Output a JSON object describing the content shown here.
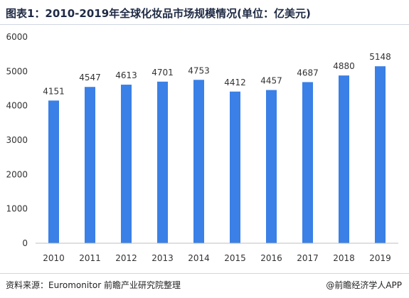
{
  "header": {
    "title": "图表1：2010-2019年全球化妆品市场规模情况(单位：亿美元)"
  },
  "footer": {
    "source": "资料来源：Euromonitor 前瞻产业研究院整理",
    "brand": "@前瞻经济学人APP"
  },
  "colors": {
    "bar": "#3a80e6",
    "axis_text": "#333333",
    "rule": "#cfd6e3"
  },
  "chart_data": {
    "type": "bar",
    "categories": [
      "2010",
      "2011",
      "2012",
      "2013",
      "2014",
      "2015",
      "2016",
      "2017",
      "2018",
      "2019"
    ],
    "values": [
      4151,
      4547,
      4613,
      4701,
      4753,
      4412,
      4457,
      4687,
      4880,
      5148
    ],
    "title": "图表1：2010-2019年全球化妆品市场规模情况(单位：亿美元)",
    "xlabel": "",
    "ylabel": "",
    "ylim": [
      0,
      6000
    ],
    "yticks": [
      0,
      1000,
      2000,
      3000,
      4000,
      5000,
      6000
    ],
    "data_labels": true,
    "grid": false,
    "legend": "none"
  }
}
